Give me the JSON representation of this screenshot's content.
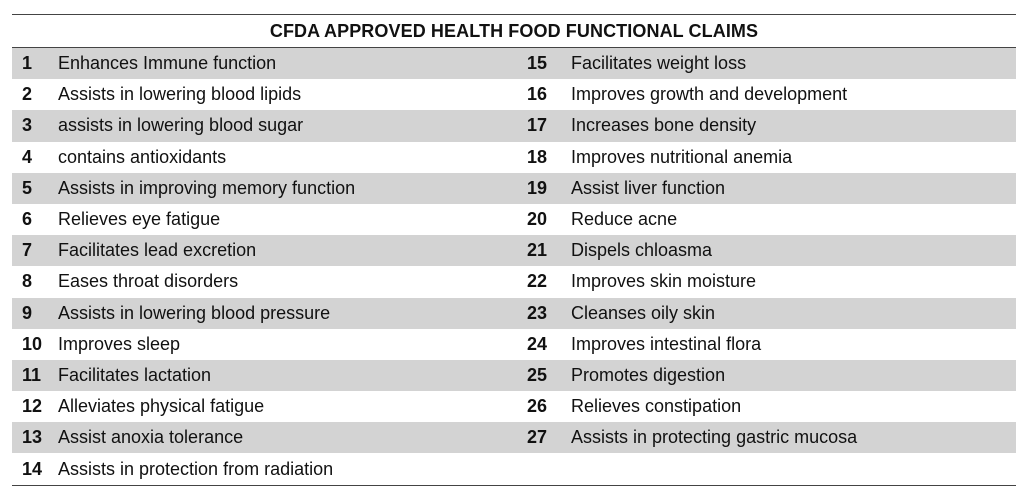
{
  "title": "CFDA APPROVED HEALTH FOOD FUNCTIONAL CLAIMS",
  "rows": [
    {
      "ln": "1",
      "lt": "Enhances Immune function",
      "rn": "15",
      "rt": "Facilitates weight loss"
    },
    {
      "ln": "2",
      "lt": "Assists in lowering blood lipids",
      "rn": "16",
      "rt": "Improves growth and development"
    },
    {
      "ln": "3",
      "lt": "assists in lowering blood sugar",
      "rn": "17",
      "rt": "Increases bone density"
    },
    {
      "ln": "4",
      "lt": "contains antioxidants",
      "rn": "18",
      "rt": "Improves nutritional anemia"
    },
    {
      "ln": "5",
      "lt": "Assists in improving memory function",
      "rn": "19",
      "rt": "Assist liver function"
    },
    {
      "ln": "6",
      "lt": "Relieves eye fatigue",
      "rn": "20",
      "rt": "Reduce acne"
    },
    {
      "ln": "7",
      "lt": "Facilitates lead excretion",
      "rn": "21",
      "rt": "Dispels chloasma"
    },
    {
      "ln": "8",
      "lt": "Eases throat disorders",
      "rn": "22",
      "rt": "Improves skin moisture"
    },
    {
      "ln": "9",
      "lt": "Assists in lowering blood pressure",
      "rn": "23",
      "rt": "Cleanses oily skin"
    },
    {
      "ln": "10",
      "lt": "Improves sleep",
      "rn": "24",
      "rt": "Improves intestinal flora"
    },
    {
      "ln": "11",
      "lt": "Facilitates lactation",
      "rn": "25",
      "rt": "Promotes digestion"
    },
    {
      "ln": "12",
      "lt": "Alleviates physical fatigue",
      "rn": "26",
      "rt": "Relieves constipation"
    },
    {
      "ln": "13",
      "lt": "Assist anoxia tolerance",
      "rn": "27",
      "rt": "Assists in protecting gastric mucosa"
    },
    {
      "ln": "14",
      "lt": "Assists in protection from radiation",
      "rn": "",
      "rt": ""
    }
  ]
}
